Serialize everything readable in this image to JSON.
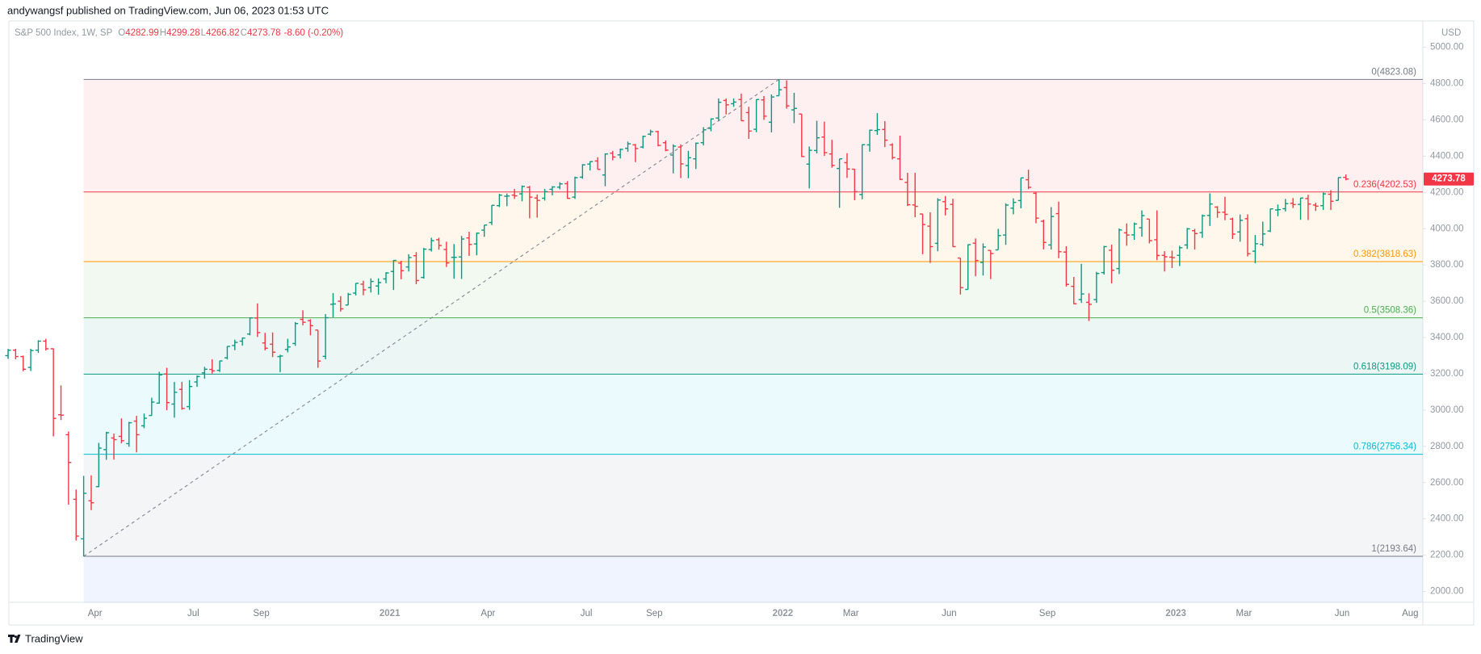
{
  "header": {
    "byline": "andywangsf published on TradingView.com, Jun 06, 2023 01:53 UTC"
  },
  "footer": {
    "brand": "TradingView"
  },
  "chart_data": {
    "type": "ohlc",
    "legend": {
      "symbol": "S&P 500 Index, 1W, SP",
      "fields": [
        {
          "key": "O",
          "value": 4282.99
        },
        {
          "key": "H",
          "value": 4299.28
        },
        {
          "key": "L",
          "value": 4266.82
        },
        {
          "key": "C",
          "value": 4273.78
        }
      ],
      "change": "-8.60 (-0.20%)"
    },
    "currency": "USD",
    "up_color": "#089981",
    "down_color": "#f23645",
    "grid": false,
    "ylim": [
      1940,
      5145
    ],
    "yticks": [
      {
        "value": 2000,
        "label": "2000.00"
      },
      {
        "value": 2200,
        "label": "2200.00"
      },
      {
        "value": 2400,
        "label": "2400.00"
      },
      {
        "value": 2600,
        "label": "2600.00"
      },
      {
        "value": 2800,
        "label": "2800.00"
      },
      {
        "value": 3000,
        "label": "3000.00"
      },
      {
        "value": 3200,
        "label": "3200.00"
      },
      {
        "value": 3400,
        "label": "3400.00"
      },
      {
        "value": 3600,
        "label": "3600.00"
      },
      {
        "value": 3800,
        "label": "3800.00"
      },
      {
        "value": 4000,
        "label": "4000.00"
      },
      {
        "value": 4200,
        "label": "4200.00"
      },
      {
        "value": 4400,
        "label": "4400.00"
      },
      {
        "value": 4600,
        "label": "4600.00"
      },
      {
        "value": 4800,
        "label": "4800.00"
      },
      {
        "value": 5000,
        "label": "5000.00"
      }
    ],
    "fib_levels": [
      {
        "level": 0,
        "price": 4823.08,
        "label": "0(4823.08)",
        "color": "#787b86"
      },
      {
        "level": 0.236,
        "price": 4202.53,
        "label": "0.236(4202.53)",
        "color": "#f23645"
      },
      {
        "level": 0.382,
        "price": 3818.63,
        "label": "0.382(3818.63)",
        "color": "#ff9800"
      },
      {
        "level": 0.5,
        "price": 3508.36,
        "label": "0.5(3508.36)",
        "color": "#4caf50"
      },
      {
        "level": 0.618,
        "price": 3198.09,
        "label": "0.618(3198.09)",
        "color": "#089981"
      },
      {
        "level": 0.786,
        "price": 2756.34,
        "label": "0.786(2756.34)",
        "color": "#00bcd4"
      },
      {
        "level": 1,
        "price": 2193.64,
        "label": "1(2193.64)",
        "color": "#787b86"
      }
    ],
    "fib_extend_color": "#2962ff",
    "categories": [
      null,
      null,
      null,
      null,
      null,
      null,
      null,
      null,
      null,
      null,
      null,
      "Apr",
      null,
      null,
      null,
      null,
      null,
      null,
      null,
      null,
      null,
      null,
      null,
      null,
      "Jul",
      null,
      null,
      null,
      null,
      null,
      null,
      null,
      null,
      "Sep",
      null,
      null,
      null,
      null,
      null,
      null,
      null,
      null,
      null,
      null,
      null,
      null,
      null,
      null,
      null,
      null,
      "2021",
      null,
      null,
      null,
      null,
      null,
      null,
      null,
      null,
      null,
      null,
      null,
      null,
      "Apr",
      null,
      null,
      null,
      null,
      null,
      null,
      null,
      null,
      null,
      null,
      null,
      null,
      "Jul",
      null,
      null,
      null,
      null,
      null,
      null,
      null,
      null,
      "Sep",
      null,
      null,
      null,
      null,
      null,
      null,
      null,
      null,
      null,
      null,
      null,
      null,
      null,
      null,
      null,
      null,
      "2022",
      null,
      null,
      null,
      null,
      null,
      null,
      null,
      null,
      "Mar",
      null,
      null,
      null,
      null,
      null,
      null,
      null,
      null,
      null,
      null,
      null,
      null,
      "Jun",
      null,
      null,
      null,
      null,
      null,
      null,
      null,
      null,
      null,
      null,
      null,
      null,
      "Sep",
      null,
      null,
      null,
      null,
      null,
      null,
      null,
      null,
      null,
      null,
      null,
      null,
      null,
      null,
      null,
      null,
      "2023",
      null,
      null,
      null,
      null,
      null,
      null,
      null,
      null,
      "Mar",
      null,
      null,
      null,
      null,
      null,
      null,
      null,
      null,
      null,
      null,
      null,
      null,
      "Jun",
      null,
      null,
      null,
      null,
      null,
      null,
      null,
      null,
      "Aug",
      null,
      null
    ],
    "ohlc": [
      [
        3300,
        3337,
        3282,
        3330
      ],
      [
        3330,
        3338,
        3280,
        3295
      ],
      [
        3295,
        3300,
        3214,
        3225
      ],
      [
        3235,
        3338,
        3215,
        3328
      ],
      [
        3330,
        3385,
        3315,
        3380
      ],
      [
        3380,
        3393,
        3328,
        3338
      ],
      [
        3338,
        3340,
        2855,
        2954
      ],
      [
        2974,
        3136,
        2945,
        2972
      ],
      [
        2864,
        2882,
        2478,
        2711
      ],
      [
        2508,
        2562,
        2281,
        2305
      ],
      [
        2290,
        2637,
        2193.64,
        2541
      ],
      [
        2500,
        2640,
        2448,
        2489
      ],
      [
        2578,
        2819,
        2575,
        2790
      ],
      [
        2782,
        2880,
        2726,
        2875
      ],
      [
        2846,
        2870,
        2727,
        2837
      ],
      [
        2855,
        2954,
        2817,
        2831
      ],
      [
        2815,
        2935,
        2798,
        2930
      ],
      [
        2939,
        2968,
        2767,
        2864
      ],
      [
        2913,
        2981,
        2900,
        2955
      ],
      [
        2970,
        3068,
        2970,
        3044
      ],
      [
        3038,
        3211,
        3035,
        3194
      ],
      [
        3199,
        3233,
        2999,
        3041
      ],
      [
        3033,
        3155,
        2958,
        3098
      ],
      [
        3114,
        3155,
        3002,
        3009
      ],
      [
        3019,
        3165,
        3001,
        3130
      ],
      [
        3155,
        3191,
        3128,
        3185
      ],
      [
        3205,
        3238,
        3173,
        3225
      ],
      [
        3224,
        3280,
        3201,
        3216
      ],
      [
        3219,
        3272,
        3210,
        3271
      ],
      [
        3288,
        3352,
        3279,
        3351
      ],
      [
        3356,
        3388,
        3330,
        3373
      ],
      [
        3380,
        3399,
        3355,
        3397
      ],
      [
        3419,
        3510,
        3412,
        3508
      ],
      [
        3507,
        3588,
        3403,
        3427
      ],
      [
        3370,
        3426,
        3329,
        3341
      ],
      [
        3363,
        3428,
        3292,
        3319
      ],
      [
        3295,
        3305,
        3209,
        3298
      ],
      [
        3334,
        3393,
        3318,
        3348
      ],
      [
        3367,
        3485,
        3354,
        3477
      ],
      [
        3500,
        3550,
        3467,
        3484
      ],
      [
        3493,
        3501,
        3412,
        3465
      ],
      [
        3441,
        3441,
        3233,
        3270
      ],
      [
        3296,
        3529,
        3280,
        3509
      ],
      [
        3583,
        3645,
        3511,
        3585
      ],
      [
        3600,
        3628,
        3543,
        3558
      ],
      [
        3579,
        3646,
        3579,
        3638
      ],
      [
        3645,
        3699,
        3632,
        3699
      ],
      [
        3694,
        3713,
        3633,
        3663
      ],
      [
        3675,
        3726,
        3648,
        3709
      ],
      [
        3684,
        3726,
        3636,
        3703
      ],
      [
        3723,
        3760,
        3699,
        3756
      ],
      [
        3764,
        3827,
        3662,
        3825
      ],
      [
        3810,
        3823,
        3721,
        3768
      ],
      [
        3789,
        3859,
        3764,
        3841
      ],
      [
        3851,
        3871,
        3694,
        3714
      ],
      [
        3731,
        3894,
        3725,
        3887
      ],
      [
        3885,
        3950,
        3874,
        3934
      ],
      [
        3939,
        3950,
        3884,
        3907
      ],
      [
        3885,
        3928,
        3789,
        3811
      ],
      [
        3842,
        3915,
        3724,
        3842
      ],
      [
        3844,
        3960,
        3723,
        3943
      ],
      [
        3949,
        3983,
        3850,
        3913
      ],
      [
        3916,
        3979,
        3853,
        3975
      ],
      [
        3992,
        4020,
        3955,
        4020
      ],
      [
        4034,
        4130,
        4020,
        4129
      ],
      [
        4127,
        4192,
        4119,
        4185
      ],
      [
        4179,
        4194,
        4124,
        4180
      ],
      [
        4185,
        4219,
        4164,
        4181
      ],
      [
        4192,
        4238,
        4151,
        4233
      ],
      [
        4228,
        4236,
        4057,
        4174
      ],
      [
        4169,
        4188,
        4061,
        4156
      ],
      [
        4168,
        4219,
        4155,
        4204
      ],
      [
        4217,
        4234,
        4184,
        4230
      ],
      [
        4229,
        4256,
        4217,
        4247
      ],
      [
        4248,
        4262,
        4165,
        4167
      ],
      [
        4174,
        4287,
        4164,
        4281
      ],
      [
        4284,
        4356,
        4275,
        4352
      ],
      [
        4356,
        4372,
        4321,
        4370
      ],
      [
        4373,
        4394,
        4327,
        4327
      ],
      [
        4296,
        4415,
        4234,
        4412
      ],
      [
        4416,
        4429,
        4377,
        4395
      ],
      [
        4407,
        4442,
        4387,
        4437
      ],
      [
        4443,
        4480,
        4424,
        4468
      ],
      [
        4462,
        4467,
        4367,
        4442
      ],
      [
        4450,
        4513,
        4443,
        4509
      ],
      [
        4521,
        4546,
        4513,
        4535
      ],
      [
        4535,
        4540,
        4454,
        4459
      ],
      [
        4474,
        4486,
        4427,
        4433
      ],
      [
        4406,
        4465,
        4305,
        4455
      ],
      [
        4450,
        4465,
        4279,
        4357
      ],
      [
        4348,
        4429,
        4278,
        4391
      ],
      [
        4385,
        4475,
        4329,
        4471
      ],
      [
        4474,
        4560,
        4459,
        4545
      ],
      [
        4553,
        4608,
        4537,
        4605
      ],
      [
        4610,
        4718,
        4595,
        4697
      ],
      [
        4707,
        4718,
        4630,
        4683
      ],
      [
        4689,
        4718,
        4672,
        4698
      ],
      [
        4712,
        4744,
        4594,
        4595
      ],
      [
        4640,
        4672,
        4495,
        4538
      ],
      [
        4548,
        4713,
        4532,
        4712
      ],
      [
        4710,
        4731,
        4600,
        4620
      ],
      [
        4587,
        4740,
        4531,
        4726
      ],
      [
        4733,
        4823.08,
        4733,
        4766
      ],
      [
        4778,
        4818,
        4662,
        4677
      ],
      [
        4655,
        4749,
        4582,
        4663
      ],
      [
        4632,
        4632,
        4395,
        4398
      ],
      [
        4356,
        4453,
        4222,
        4432
      ],
      [
        4431,
        4595,
        4415,
        4501
      ],
      [
        4505,
        4590,
        4401,
        4419
      ],
      [
        4412,
        4490,
        4336,
        4349
      ],
      [
        4332,
        4385,
        4115,
        4385
      ],
      [
        4364,
        4416,
        4280,
        4329
      ],
      [
        4328,
        4329,
        4157,
        4204
      ],
      [
        4188,
        4465,
        4162,
        4463
      ],
      [
        4462,
        4546,
        4425,
        4543
      ],
      [
        4541,
        4637,
        4517,
        4546
      ],
      [
        4547,
        4593,
        4450,
        4488
      ],
      [
        4462,
        4471,
        4382,
        4392
      ],
      [
        4385,
        4513,
        4268,
        4272
      ],
      [
        4255,
        4308,
        4125,
        4132
      ],
      [
        4131,
        4308,
        4063,
        4123
      ],
      [
        4081,
        4082,
        3859,
        4023
      ],
      [
        4014,
        4090,
        3811,
        3901
      ],
      [
        3919,
        4168,
        3875,
        4158
      ],
      [
        4149,
        4180,
        4073,
        4109
      ],
      [
        4134,
        4165,
        3900,
        3901
      ],
      [
        3838,
        3838,
        3637,
        3675
      ],
      [
        3665,
        3913,
        3665,
        3912
      ],
      [
        3920,
        3946,
        3738,
        3825
      ],
      [
        3814,
        3919,
        3742,
        3899
      ],
      [
        3880,
        3880,
        3722,
        3863
      ],
      [
        3883,
        3999,
        3883,
        3962
      ],
      [
        3965,
        4140,
        3911,
        4130
      ],
      [
        4113,
        4167,
        4079,
        4145
      ],
      [
        4155,
        4280,
        4112,
        4280
      ],
      [
        4270,
        4325,
        4218,
        4228
      ],
      [
        4195,
        4204,
        4030,
        4058
      ],
      [
        4041,
        4050,
        3886,
        3924
      ],
      [
        3910,
        4119,
        3885,
        4067
      ],
      [
        4083,
        4149,
        3837,
        3873
      ],
      [
        3871,
        3903,
        3681,
        3693
      ],
      [
        3682,
        3734,
        3584,
        3586
      ],
      [
        3609,
        3806,
        3591,
        3640
      ],
      [
        3594,
        3644,
        3491,
        3583
      ],
      [
        3609,
        3762,
        3591,
        3753
      ],
      [
        3758,
        3905,
        3747,
        3901
      ],
      [
        3881,
        3912,
        3698,
        3771
      ],
      [
        3780,
        4001,
        3750,
        3993
      ],
      [
        3977,
        4029,
        3906,
        3965
      ],
      [
        3966,
        4034,
        3938,
        4026
      ],
      [
        4005,
        4101,
        3956,
        4072
      ],
      [
        4053,
        4053,
        3919,
        3934
      ],
      [
        3939,
        4101,
        3827,
        3852
      ],
      [
        3853,
        3876,
        3764,
        3845
      ],
      [
        3843,
        3879,
        3783,
        3840
      ],
      [
        3853,
        3906,
        3794,
        3895
      ],
      [
        3910,
        4004,
        3888,
        3999
      ],
      [
        3989,
        3999,
        3885,
        3973
      ],
      [
        3978,
        4078,
        3949,
        4071
      ],
      [
        4073,
        4195,
        4015,
        4136
      ],
      [
        4119,
        4124,
        4060,
        4090
      ],
      [
        4091,
        4176,
        4047,
        4079
      ],
      [
        4053,
        4061,
        3943,
        3970
      ],
      [
        3982,
        4078,
        3928,
        4046
      ],
      [
        4055,
        4079,
        3847,
        3862
      ],
      [
        3876,
        3965,
        3809,
        3917
      ],
      [
        3914,
        4039,
        3904,
        3971
      ],
      [
        3987,
        4110,
        3981,
        4109
      ],
      [
        4103,
        4133,
        4069,
        4105
      ],
      [
        4110,
        4164,
        4095,
        4138
      ],
      [
        4140,
        4169,
        4114,
        4133
      ],
      [
        4134,
        4170,
        4049,
        4169
      ],
      [
        4166,
        4187,
        4048,
        4136
      ],
      [
        4130,
        4143,
        4098,
        4124
      ],
      [
        4127,
        4199,
        4103,
        4192
      ],
      [
        4190,
        4212,
        4103,
        4151
      ],
      [
        4156,
        4283,
        4156,
        4282
      ],
      [
        4282.99,
        4299.28,
        4266.82,
        4273.78
      ],
      null,
      null,
      null,
      null,
      null,
      null,
      null,
      null,
      null,
      null
    ]
  }
}
